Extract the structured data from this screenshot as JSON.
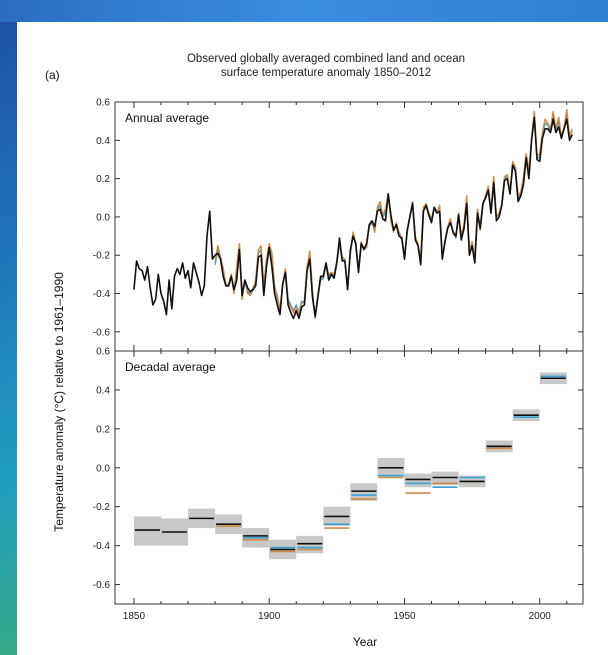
{
  "chart_data": {
    "type": "line",
    "panel_label": "(a)",
    "title_line1": "Observed globally averaged combined land and ocean",
    "title_line2": "surface temperature anomaly 1850–2012",
    "ylabel": "Temperature anomaly (°C) relative to 1961–1990",
    "xlabel": "Year",
    "xlim": [
      1843,
      2016
    ],
    "ylim": [
      -0.7,
      0.6
    ],
    "x_ticks": [
      1850,
      1900,
      1950,
      2000
    ],
    "y_ticks": [
      -0.6,
      -0.4,
      -0.2,
      0.0,
      0.2,
      0.4,
      0.6
    ],
    "y_tick_labels": [
      "-0.6",
      "-0.4",
      "-0.2",
      "0.0",
      "0.2",
      "0.4",
      "0.6"
    ],
    "colors": {
      "black": "#111111",
      "orange": "#d08a45",
      "blue": "#3aa0d8",
      "band": "#c8c8c8"
    },
    "annual": {
      "label": "Annual average",
      "years": [
        1850,
        1851,
        1852,
        1853,
        1854,
        1855,
        1856,
        1857,
        1858,
        1859,
        1860,
        1861,
        1862,
        1863,
        1864,
        1865,
        1866,
        1867,
        1868,
        1869,
        1870,
        1871,
        1872,
        1873,
        1874,
        1875,
        1876,
        1877,
        1878,
        1879,
        1880,
        1881,
        1882,
        1883,
        1884,
        1885,
        1886,
        1887,
        1888,
        1889,
        1890,
        1891,
        1892,
        1893,
        1894,
        1895,
        1896,
        1897,
        1898,
        1899,
        1900,
        1901,
        1902,
        1903,
        1904,
        1905,
        1906,
        1907,
        1908,
        1909,
        1910,
        1911,
        1912,
        1913,
        1914,
        1915,
        1916,
        1917,
        1918,
        1919,
        1920,
        1921,
        1922,
        1923,
        1924,
        1925,
        1926,
        1927,
        1928,
        1929,
        1930,
        1931,
        1932,
        1933,
        1934,
        1935,
        1936,
        1937,
        1938,
        1939,
        1940,
        1941,
        1942,
        1943,
        1944,
        1945,
        1946,
        1947,
        1948,
        1949,
        1950,
        1951,
        1952,
        1953,
        1954,
        1955,
        1956,
        1957,
        1958,
        1959,
        1960,
        1961,
        1962,
        1963,
        1964,
        1965,
        1966,
        1967,
        1968,
        1969,
        1970,
        1971,
        1972,
        1973,
        1974,
        1975,
        1976,
        1977,
        1978,
        1979,
        1980,
        1981,
        1982,
        1983,
        1984,
        1985,
        1986,
        1987,
        1988,
        1989,
        1990,
        1991,
        1992,
        1993,
        1994,
        1995,
        1996,
        1997,
        1998,
        1999,
        2000,
        2001,
        2002,
        2003,
        2004,
        2005,
        2006,
        2007,
        2008,
        2009,
        2010,
        2011,
        2012
      ],
      "series": [
        {
          "name": "",
          "color": "black",
          "start_year": 1850,
          "values": [
            -0.38,
            -0.23,
            -0.27,
            -0.28,
            -0.33,
            -0.26,
            -0.37,
            -0.46,
            -0.43,
            -0.3,
            -0.4,
            -0.44,
            -0.51,
            -0.33,
            -0.48,
            -0.31,
            -0.27,
            -0.3,
            -0.24,
            -0.32,
            -0.28,
            -0.37,
            -0.24,
            -0.29,
            -0.34,
            -0.41,
            -0.36,
            -0.1,
            0.03,
            -0.22,
            -0.2,
            -0.19,
            -0.22,
            -0.31,
            -0.36,
            -0.36,
            -0.31,
            -0.38,
            -0.33,
            -0.17,
            -0.41,
            -0.33,
            -0.37,
            -0.39,
            -0.38,
            -0.36,
            -0.21,
            -0.2,
            -0.41,
            -0.26,
            -0.16,
            -0.26,
            -0.4,
            -0.46,
            -0.51,
            -0.35,
            -0.29,
            -0.46,
            -0.5,
            -0.53,
            -0.49,
            -0.53,
            -0.47,
            -0.46,
            -0.28,
            -0.22,
            -0.42,
            -0.52,
            -0.42,
            -0.31,
            -0.31,
            -0.24,
            -0.33,
            -0.3,
            -0.32,
            -0.24,
            -0.11,
            -0.23,
            -0.23,
            -0.38,
            -0.17,
            -0.1,
            -0.14,
            -0.29,
            -0.14,
            -0.17,
            -0.14,
            -0.04,
            -0.02,
            -0.05,
            0.03,
            0.04,
            -0.01,
            -0.02,
            0.12,
            0.01,
            -0.07,
            -0.04,
            -0.1,
            -0.11,
            -0.22,
            -0.07,
            0.0,
            0.07,
            -0.12,
            -0.15,
            -0.25,
            0.03,
            0.06,
            0.01,
            -0.03,
            0.05,
            0.02,
            0.03,
            -0.22,
            -0.13,
            -0.06,
            -0.03,
            -0.08,
            -0.1,
            0.01,
            -0.12,
            -0.06,
            0.07,
            -0.2,
            -0.15,
            -0.24,
            0.02,
            -0.06,
            0.07,
            0.1,
            0.14,
            0.02,
            0.18,
            -0.02,
            0.0,
            0.06,
            0.19,
            0.2,
            0.12,
            0.27,
            0.24,
            0.08,
            0.11,
            0.17,
            0.31,
            0.2,
            0.4,
            0.52,
            0.3,
            0.29,
            0.41,
            0.46,
            0.46,
            0.44,
            0.51,
            0.44,
            0.47,
            0.41,
            0.46,
            0.51,
            0.4,
            0.43
          ]
        },
        {
          "name": "",
          "color": "orange",
          "start_year": 1880,
          "values": [
            -0.23,
            -0.15,
            -0.21,
            -0.27,
            -0.36,
            -0.35,
            -0.3,
            -0.4,
            -0.26,
            -0.14,
            -0.43,
            -0.33,
            -0.4,
            -0.41,
            -0.38,
            -0.33,
            -0.17,
            -0.15,
            -0.37,
            -0.22,
            -0.14,
            -0.19,
            -0.37,
            -0.41,
            -0.49,
            -0.35,
            -0.27,
            -0.44,
            -0.47,
            -0.5,
            -0.47,
            -0.51,
            -0.45,
            -0.44,
            -0.26,
            -0.18,
            -0.39,
            -0.53,
            -0.4,
            -0.32,
            -0.31,
            -0.24,
            -0.3,
            -0.29,
            -0.3,
            -0.23,
            -0.13,
            -0.21,
            -0.22,
            -0.38,
            -0.18,
            -0.08,
            -0.14,
            -0.28,
            -0.13,
            -0.17,
            -0.16,
            -0.04,
            -0.02,
            -0.08,
            0.05,
            0.08,
            0.01,
            0.04,
            0.12,
            -0.02,
            -0.08,
            -0.03,
            -0.08,
            -0.11,
            -0.2,
            -0.08,
            0.0,
            0.08,
            -0.1,
            -0.14,
            -0.22,
            0.05,
            0.07,
            0.02,
            -0.01,
            0.05,
            0.02,
            0.06,
            -0.21,
            -0.13,
            -0.05,
            -0.01,
            -0.09,
            -0.1,
            0.02,
            -0.1,
            -0.04,
            0.11,
            -0.18,
            -0.13,
            -0.22,
            0.04,
            -0.07,
            0.06,
            0.11,
            0.16,
            0.02,
            0.21,
            0.0,
            0.02,
            0.07,
            0.21,
            0.22,
            0.13,
            0.29,
            0.26,
            0.11,
            0.13,
            0.21,
            0.33,
            0.24,
            0.41,
            0.55,
            0.32,
            0.33,
            0.44,
            0.51,
            0.49,
            0.46,
            0.55,
            0.46,
            0.52,
            0.42,
            0.47,
            0.56,
            0.42,
            0.46
          ]
        },
        {
          "name": "",
          "color": "blue",
          "start_year": 1880,
          "values": [
            -0.25,
            -0.17,
            -0.22,
            -0.28,
            -0.35,
            -0.36,
            -0.31,
            -0.39,
            -0.28,
            -0.16,
            -0.42,
            -0.34,
            -0.39,
            -0.4,
            -0.37,
            -0.34,
            -0.19,
            -0.17,
            -0.36,
            -0.24,
            -0.15,
            -0.2,
            -0.36,
            -0.42,
            -0.48,
            -0.36,
            -0.28,
            -0.43,
            -0.46,
            -0.49,
            -0.46,
            -0.5,
            -0.44,
            -0.45,
            -0.27,
            -0.2,
            -0.4,
            -0.52,
            -0.41,
            -0.33,
            -0.32,
            -0.25,
            -0.31,
            -0.29,
            -0.31,
            -0.24,
            -0.14,
            -0.22,
            -0.23,
            -0.37,
            -0.19,
            -0.09,
            -0.15,
            -0.28,
            -0.14,
            -0.16,
            -0.15,
            -0.05,
            -0.03,
            -0.07,
            0.04,
            0.06,
            0.0,
            0.02,
            0.12,
            -0.01,
            -0.07,
            -0.04,
            -0.09,
            -0.12,
            -0.21,
            -0.08,
            0.01,
            0.08,
            -0.11,
            -0.15,
            -0.23,
            0.04,
            0.07,
            0.01,
            -0.02,
            0.05,
            0.03,
            0.05,
            -0.21,
            -0.12,
            -0.05,
            -0.02,
            -0.08,
            -0.11,
            0.02,
            -0.11,
            -0.05,
            0.1,
            -0.19,
            -0.14,
            -0.23,
            0.03,
            -0.06,
            0.07,
            0.11,
            0.15,
            0.03,
            0.2,
            0.0,
            0.01,
            0.07,
            0.2,
            0.21,
            0.12,
            0.28,
            0.25,
            0.1,
            0.12,
            0.19,
            0.32,
            0.22,
            0.41,
            0.54,
            0.31,
            0.31,
            0.43,
            0.49,
            0.48,
            0.45,
            0.53,
            0.45,
            0.5,
            0.42,
            0.46,
            0.54,
            0.42,
            0.45
          ]
        }
      ]
    },
    "decadal": {
      "label": "Decadal average",
      "decades": [
        {
          "start": 1850,
          "end": 1859,
          "black": -0.32,
          "band_lo": -0.4,
          "band_hi": -0.25
        },
        {
          "start": 1860,
          "end": 1869,
          "black": -0.33,
          "band_lo": -0.4,
          "band_hi": -0.26
        },
        {
          "start": 1870,
          "end": 1879,
          "black": -0.26,
          "band_lo": -0.31,
          "band_hi": -0.21
        },
        {
          "start": 1880,
          "end": 1889,
          "black": -0.29,
          "orange": -0.3,
          "blue": -0.3,
          "band_lo": -0.34,
          "band_hi": -0.24
        },
        {
          "start": 1890,
          "end": 1899,
          "black": -0.35,
          "orange": -0.37,
          "blue": -0.36,
          "band_lo": -0.41,
          "band_hi": -0.31
        },
        {
          "start": 1900,
          "end": 1909,
          "black": -0.42,
          "orange": -0.43,
          "blue": -0.41,
          "band_lo": -0.47,
          "band_hi": -0.37
        },
        {
          "start": 1910,
          "end": 1919,
          "black": -0.39,
          "orange": -0.42,
          "blue": -0.41,
          "band_lo": -0.44,
          "band_hi": -0.35
        },
        {
          "start": 1920,
          "end": 1929,
          "black": -0.25,
          "orange": -0.31,
          "blue": -0.29,
          "band_lo": -0.3,
          "band_hi": -0.2
        },
        {
          "start": 1930,
          "end": 1939,
          "black": -0.12,
          "orange": -0.16,
          "blue": -0.14,
          "band_lo": -0.17,
          "band_hi": -0.08
        },
        {
          "start": 1940,
          "end": 1949,
          "black": 0.0,
          "orange": -0.05,
          "blue": -0.04,
          "band_lo": -0.05,
          "band_hi": 0.05
        },
        {
          "start": 1950,
          "end": 1959,
          "black": -0.06,
          "orange": -0.13,
          "blue": -0.08,
          "band_lo": -0.1,
          "band_hi": -0.03
        },
        {
          "start": 1960,
          "end": 1969,
          "black": -0.05,
          "orange": -0.08,
          "blue": -0.1,
          "band_lo": -0.09,
          "band_hi": -0.02
        },
        {
          "start": 1970,
          "end": 1979,
          "black": -0.07,
          "orange": -0.07,
          "blue": -0.05,
          "band_lo": -0.1,
          "band_hi": -0.04
        },
        {
          "start": 1980,
          "end": 1989,
          "black": 0.11,
          "orange": 0.1,
          "blue": 0.11,
          "band_lo": 0.08,
          "band_hi": 0.14
        },
        {
          "start": 1990,
          "end": 1999,
          "black": 0.27,
          "orange": 0.27,
          "blue": 0.26,
          "band_lo": 0.24,
          "band_hi": 0.3
        },
        {
          "start": 2000,
          "end": 2009,
          "black": 0.46,
          "orange": 0.46,
          "blue": 0.47,
          "band_lo": 0.43,
          "band_hi": 0.49
        }
      ]
    }
  }
}
